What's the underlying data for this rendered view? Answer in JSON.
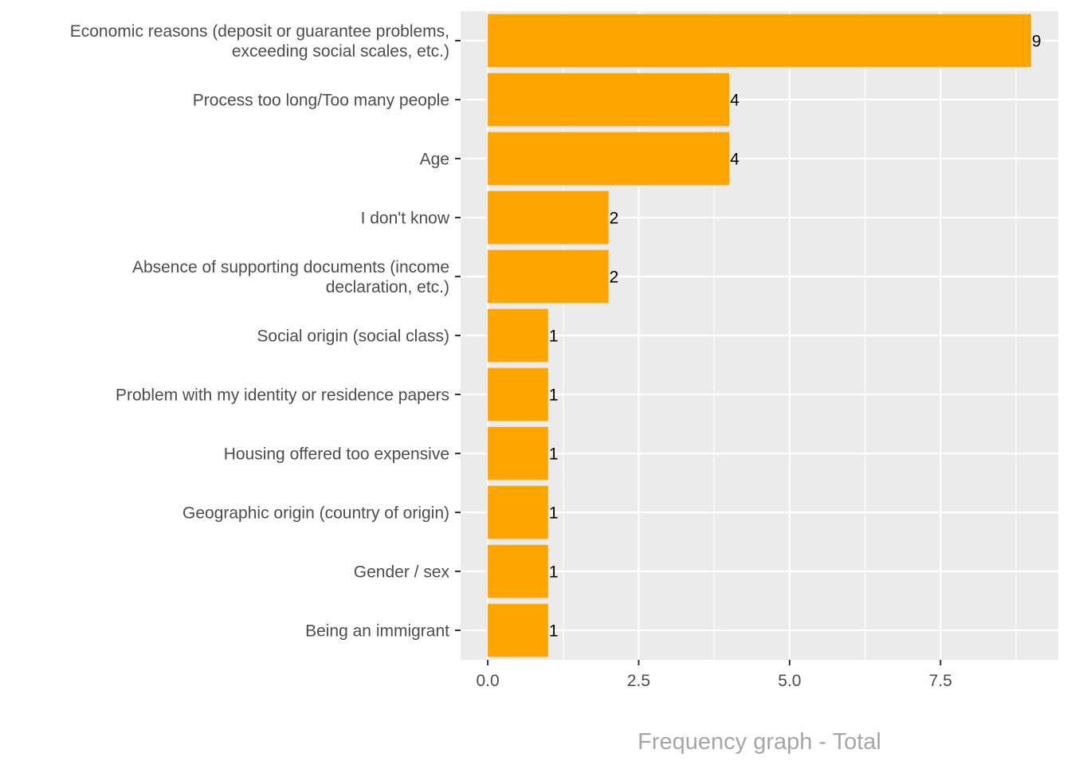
{
  "chart_data": {
    "type": "bar",
    "orientation": "horizontal",
    "title": "",
    "xlabel": "Frequency graph - Total",
    "ylabel": "",
    "categories": [
      [
        "Economic reasons (deposit or guarantee problems,",
        "exceeding social scales, etc.)"
      ],
      [
        "Process too long/Too many people"
      ],
      [
        "Age"
      ],
      [
        "I don't know"
      ],
      [
        "Absence of supporting documents (income",
        "declaration, etc.)"
      ],
      [
        "Social origin (social class)"
      ],
      [
        "Problem with my identity or residence papers"
      ],
      [
        "Housing offered too expensive"
      ],
      [
        "Geographic origin (country of origin)"
      ],
      [
        "Gender / sex"
      ],
      [
        "Being an immigrant"
      ]
    ],
    "values": [
      9,
      4,
      4,
      2,
      2,
      1,
      1,
      1,
      1,
      1,
      1
    ],
    "xlim": [
      -0.45,
      9.45
    ],
    "xticks": [
      0,
      2.5,
      5,
      7.5
    ],
    "xtick_labels": [
      "0.0",
      "2.5",
      "5.0",
      "7.5"
    ],
    "grid": true,
    "legend": "none",
    "colors": {
      "bar": "#FFA500",
      "panel": "#EBEBEB",
      "grid": "#FFFFFF",
      "axis_title": "#A6A6A6",
      "tick_text": "#4D4D4D"
    }
  }
}
